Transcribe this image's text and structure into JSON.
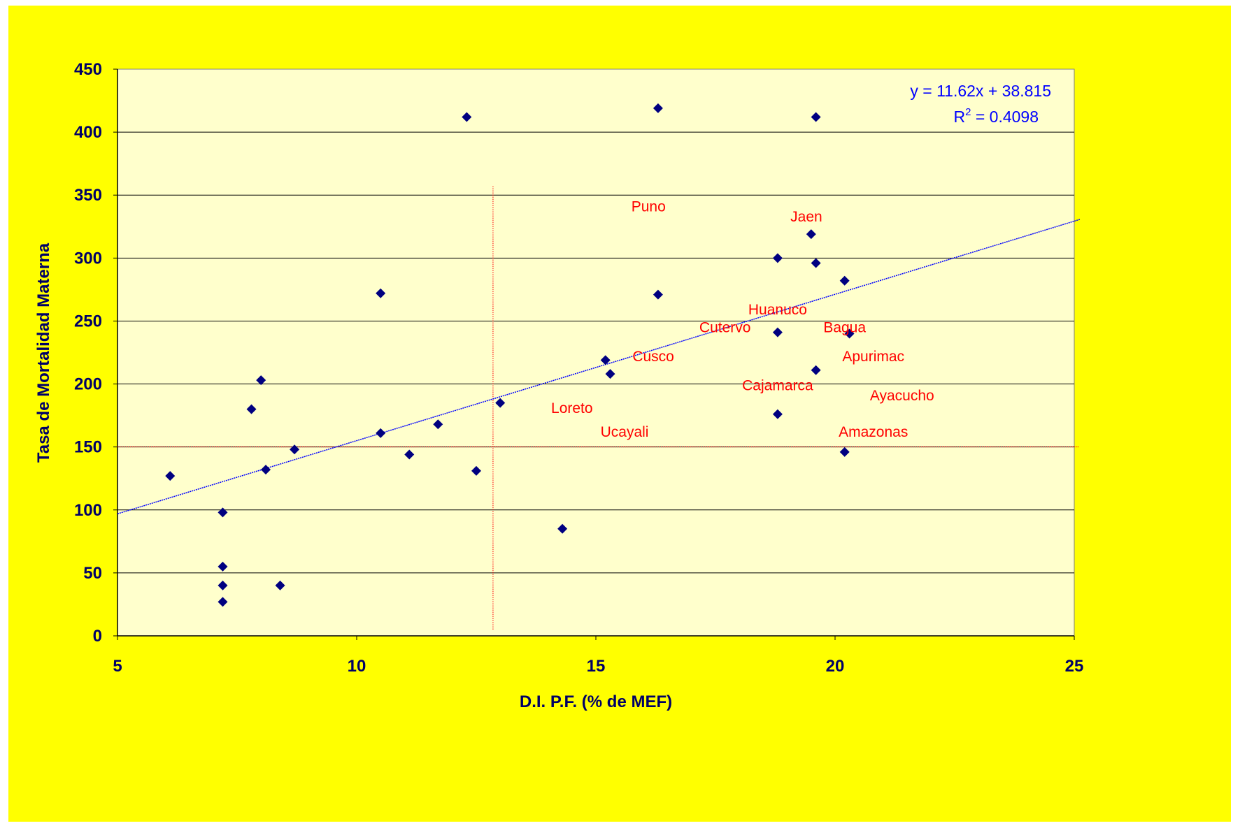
{
  "chart_data": {
    "type": "scatter",
    "xlabel": "D.I. P.F. (% de MEF)",
    "ylabel": "Tasa de Mortalidad Materna",
    "xlim": [
      5,
      25
    ],
    "ylim": [
      0,
      450
    ],
    "xticks": [
      5,
      10,
      15,
      20,
      25
    ],
    "yticks": [
      0,
      50,
      100,
      150,
      200,
      250,
      300,
      350,
      400,
      450
    ],
    "grid": "horizontal",
    "colors": {
      "background": "#ffff00",
      "plot_background": "#ffffcc",
      "points": "#000080",
      "trendline": "#0000ff",
      "reference_lines": "#ff0000",
      "labels": "#ff0000",
      "axis_text": "#000066"
    },
    "series": [
      {
        "points": [
          [
            6.1,
            127
          ],
          [
            7.2,
            98
          ],
          [
            7.2,
            55
          ],
          [
            7.2,
            40
          ],
          [
            7.2,
            27
          ],
          [
            7.8,
            180
          ],
          [
            8.0,
            203
          ],
          [
            8.1,
            132
          ],
          [
            8.4,
            40
          ],
          [
            8.7,
            148
          ],
          [
            10.5,
            272
          ],
          [
            10.5,
            161
          ],
          [
            11.1,
            144
          ],
          [
            11.7,
            168
          ],
          [
            12.3,
            412
          ],
          [
            12.5,
            131
          ],
          [
            13.0,
            185
          ],
          [
            14.3,
            85
          ],
          [
            15.2,
            219
          ],
          [
            15.3,
            208
          ],
          [
            16.3,
            419
          ],
          [
            16.3,
            271
          ],
          [
            18.8,
            300
          ],
          [
            18.8,
            241
          ],
          [
            18.8,
            176
          ],
          [
            19.5,
            319
          ],
          [
            19.6,
            296
          ],
          [
            19.6,
            211
          ],
          [
            19.6,
            412
          ],
          [
            20.2,
            282
          ],
          [
            20.3,
            240
          ],
          [
            20.2,
            146
          ]
        ]
      }
    ],
    "trendline": {
      "slope": 11.62,
      "intercept": 38.815,
      "x_range": [
        5,
        25
      ]
    },
    "equation": {
      "line1": "y = 11.62x + 38.815",
      "r2_prefix": "R",
      "r2_sup": "2",
      "r2_value": " = 0.4098"
    },
    "reference_lines": {
      "horizontal_y": 150,
      "vertical_x": 12.85,
      "vertical_y_range": [
        5,
        357
      ]
    },
    "annotations": [
      {
        "text": "Puno",
        "x": 16.1,
        "y": 341
      },
      {
        "text": "Jaen",
        "x": 19.4,
        "y": 333
      },
      {
        "text": "Huanuco",
        "x": 18.8,
        "y": 259
      },
      {
        "text": "Cutervo",
        "x": 17.7,
        "y": 245
      },
      {
        "text": "Bagua",
        "x": 20.2,
        "y": 245
      },
      {
        "text": "Cusco",
        "x": 16.2,
        "y": 222
      },
      {
        "text": "Apurimac",
        "x": 20.8,
        "y": 222
      },
      {
        "text": "Cajamarca",
        "x": 18.8,
        "y": 199
      },
      {
        "text": "Ayacucho",
        "x": 21.4,
        "y": 191
      },
      {
        "text": "Loreto",
        "x": 14.5,
        "y": 181
      },
      {
        "text": "Ucayali",
        "x": 15.6,
        "y": 162
      },
      {
        "text": "Amazonas",
        "x": 20.8,
        "y": 162
      }
    ]
  }
}
